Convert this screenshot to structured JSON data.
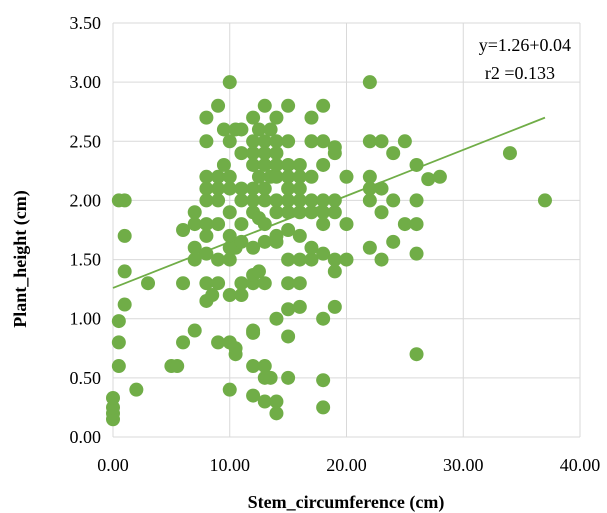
{
  "chart_data": {
    "type": "scatter",
    "title": "",
    "xlabel": "Stem_circumference (cm)",
    "ylabel": "Plant_height (cm)",
    "xlim": [
      0,
      40
    ],
    "ylim": [
      0,
      3.5
    ],
    "x_ticks": [
      "0.00",
      "10.00",
      "20.00",
      "30.00",
      "40.00"
    ],
    "y_ticks": [
      "0.00",
      "0.50",
      "1.00",
      "1.50",
      "2.00",
      "2.50",
      "3.00",
      "3.50"
    ],
    "grid": true,
    "legend": "none",
    "marker_color": "#70ad47",
    "trendline": {
      "x": [
        0,
        37
      ],
      "y": [
        1.26,
        2.7
      ],
      "color": "#70ad47"
    },
    "annotations": [
      "y=1.26+0.04",
      "r2 =0.133"
    ],
    "series": [
      {
        "points": [
          [
            0.0,
            0.15
          ],
          [
            0.0,
            0.2
          ],
          [
            0.0,
            0.25
          ],
          [
            0.0,
            0.33
          ],
          [
            0.5,
            0.6
          ],
          [
            0.5,
            0.8
          ],
          [
            0.5,
            0.98
          ],
          [
            0.5,
            2.0
          ],
          [
            1.0,
            1.12
          ],
          [
            1.0,
            2.0
          ],
          [
            1.0,
            1.4
          ],
          [
            1.0,
            1.7
          ],
          [
            2.0,
            0.4
          ],
          [
            3.0,
            1.3
          ],
          [
            5.0,
            0.6
          ],
          [
            5.5,
            0.6
          ],
          [
            6.0,
            0.8
          ],
          [
            6.0,
            1.3
          ],
          [
            6.0,
            1.75
          ],
          [
            7.0,
            0.9
          ],
          [
            7.0,
            1.5
          ],
          [
            7.0,
            1.6
          ],
          [
            7.0,
            1.8
          ],
          [
            7.0,
            1.9
          ],
          [
            8.0,
            1.15
          ],
          [
            8.0,
            1.3
          ],
          [
            8.0,
            1.55
          ],
          [
            8.0,
            1.7
          ],
          [
            8.0,
            1.8
          ],
          [
            8.0,
            2.0
          ],
          [
            8.0,
            2.1
          ],
          [
            8.0,
            2.2
          ],
          [
            8.0,
            2.5
          ],
          [
            8.0,
            2.7
          ],
          [
            8.5,
            1.2
          ],
          [
            9.0,
            0.8
          ],
          [
            9.0,
            1.3
          ],
          [
            9.0,
            1.5
          ],
          [
            9.0,
            1.8
          ],
          [
            9.0,
            2.0
          ],
          [
            9.0,
            2.1
          ],
          [
            9.0,
            2.2
          ],
          [
            9.0,
            2.8
          ],
          [
            9.5,
            2.3
          ],
          [
            9.5,
            2.6
          ],
          [
            10.0,
            0.4
          ],
          [
            10.0,
            0.8
          ],
          [
            10.0,
            1.2
          ],
          [
            10.0,
            1.5
          ],
          [
            10.0,
            1.6
          ],
          [
            10.0,
            1.9
          ],
          [
            10.0,
            2.1
          ],
          [
            10.0,
            2.2
          ],
          [
            10.0,
            2.5
          ],
          [
            10.0,
            3.0
          ],
          [
            10.0,
            1.7
          ],
          [
            10.5,
            0.7
          ],
          [
            10.5,
            0.75
          ],
          [
            10.5,
            1.6
          ],
          [
            10.5,
            2.6
          ],
          [
            11.0,
            1.3
          ],
          [
            11.0,
            1.65
          ],
          [
            11.0,
            1.8
          ],
          [
            11.0,
            2.0
          ],
          [
            11.0,
            2.1
          ],
          [
            11.0,
            2.4
          ],
          [
            11.0,
            2.6
          ],
          [
            11.0,
            1.2
          ],
          [
            12.0,
            0.35
          ],
          [
            12.0,
            0.6
          ],
          [
            12.0,
            0.88
          ],
          [
            12.0,
            1.3
          ],
          [
            12.0,
            1.6
          ],
          [
            12.0,
            1.9
          ],
          [
            12.0,
            2.0
          ],
          [
            12.0,
            2.1
          ],
          [
            12.0,
            2.3
          ],
          [
            12.0,
            2.5
          ],
          [
            12.0,
            2.7
          ],
          [
            12.0,
            1.37
          ],
          [
            12.0,
            2.4
          ],
          [
            12.0,
            0.9
          ],
          [
            12.5,
            1.4
          ],
          [
            12.5,
            1.85
          ],
          [
            12.5,
            2.2
          ],
          [
            12.5,
            2.6
          ],
          [
            13.0,
            0.3
          ],
          [
            13.0,
            0.5
          ],
          [
            13.0,
            0.6
          ],
          [
            13.0,
            1.3
          ],
          [
            13.0,
            1.65
          ],
          [
            13.0,
            1.8
          ],
          [
            13.0,
            2.0
          ],
          [
            13.0,
            2.1
          ],
          [
            13.0,
            2.3
          ],
          [
            13.0,
            2.5
          ],
          [
            13.0,
            2.8
          ],
          [
            13.0,
            2.4
          ],
          [
            13.5,
            0.5
          ],
          [
            13.5,
            2.2
          ],
          [
            13.5,
            2.6
          ],
          [
            14.0,
            0.2
          ],
          [
            14.0,
            0.3
          ],
          [
            14.0,
            1.0
          ],
          [
            14.0,
            1.7
          ],
          [
            14.0,
            1.9
          ],
          [
            14.0,
            2.0
          ],
          [
            14.0,
            2.2
          ],
          [
            14.0,
            2.4
          ],
          [
            14.0,
            2.5
          ],
          [
            14.0,
            2.7
          ],
          [
            14.0,
            1.65
          ],
          [
            14.0,
            2.3
          ],
          [
            15.0,
            0.5
          ],
          [
            15.0,
            0.85
          ],
          [
            15.0,
            1.08
          ],
          [
            15.0,
            1.3
          ],
          [
            15.0,
            1.5
          ],
          [
            15.0,
            1.75
          ],
          [
            15.0,
            2.0
          ],
          [
            15.0,
            2.1
          ],
          [
            15.0,
            2.3
          ],
          [
            15.0,
            2.5
          ],
          [
            15.0,
            2.8
          ],
          [
            15.0,
            1.9
          ],
          [
            15.0,
            2.2
          ],
          [
            16.0,
            1.1
          ],
          [
            16.0,
            1.3
          ],
          [
            16.0,
            1.5
          ],
          [
            16.0,
            1.7
          ],
          [
            16.0,
            1.9
          ],
          [
            16.0,
            2.0
          ],
          [
            16.0,
            2.2
          ],
          [
            16.0,
            2.3
          ],
          [
            16.0,
            2.1
          ],
          [
            17.0,
            1.5
          ],
          [
            17.0,
            1.6
          ],
          [
            17.0,
            1.9
          ],
          [
            17.0,
            2.0
          ],
          [
            17.0,
            2.2
          ],
          [
            17.0,
            2.5
          ],
          [
            17.0,
            2.7
          ],
          [
            18.0,
            0.25
          ],
          [
            18.0,
            0.48
          ],
          [
            18.0,
            1.0
          ],
          [
            18.0,
            1.55
          ],
          [
            18.0,
            1.8
          ],
          [
            18.0,
            1.9
          ],
          [
            18.0,
            2.0
          ],
          [
            18.0,
            2.3
          ],
          [
            18.0,
            2.5
          ],
          [
            18.0,
            2.8
          ],
          [
            19.0,
            1.1
          ],
          [
            19.0,
            1.4
          ],
          [
            19.0,
            1.5
          ],
          [
            19.0,
            1.9
          ],
          [
            19.0,
            2.0
          ],
          [
            19.0,
            2.4
          ],
          [
            19.0,
            2.45
          ],
          [
            20.0,
            1.5
          ],
          [
            20.0,
            1.8
          ],
          [
            20.0,
            2.2
          ],
          [
            22.0,
            1.6
          ],
          [
            22.0,
            2.0
          ],
          [
            22.0,
            2.1
          ],
          [
            22.0,
            2.2
          ],
          [
            22.0,
            2.5
          ],
          [
            22.0,
            3.0
          ],
          [
            23.0,
            1.5
          ],
          [
            23.0,
            1.9
          ],
          [
            23.0,
            2.1
          ],
          [
            23.0,
            2.5
          ],
          [
            24.0,
            1.65
          ],
          [
            24.0,
            2.0
          ],
          [
            24.0,
            2.4
          ],
          [
            25.0,
            1.8
          ],
          [
            25.0,
            2.5
          ],
          [
            26.0,
            0.7
          ],
          [
            26.0,
            1.55
          ],
          [
            26.0,
            1.8
          ],
          [
            26.0,
            2.0
          ],
          [
            26.0,
            2.3
          ],
          [
            27.0,
            2.18
          ],
          [
            28.0,
            2.2
          ],
          [
            34.0,
            2.4
          ],
          [
            37.0,
            2.0
          ]
        ]
      }
    ]
  }
}
